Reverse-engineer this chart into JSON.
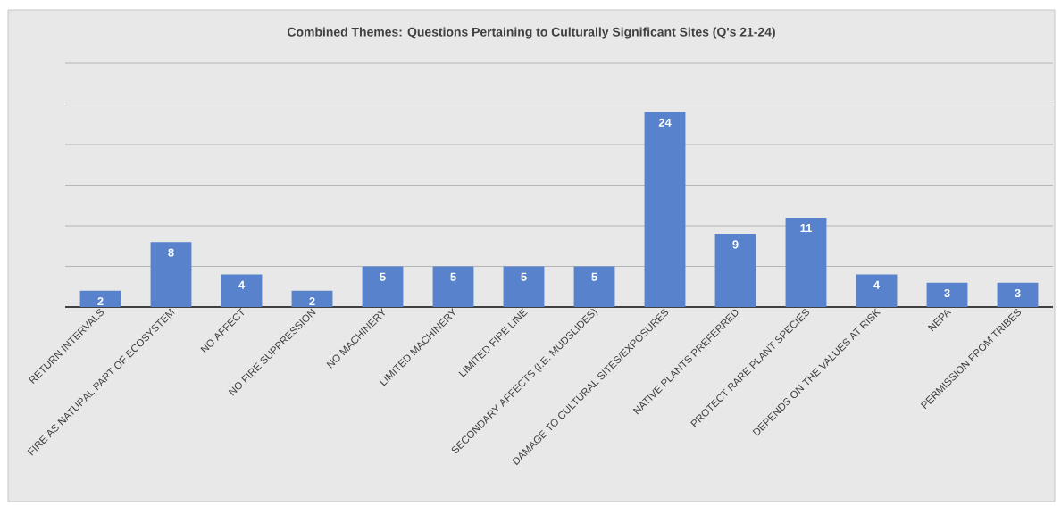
{
  "chart_data": {
    "type": "bar",
    "title": "Combined Themes:  Questions Pertaining to Culturally Significant Sites (Q's 21-24)",
    "categories": [
      "RETURN INTERVALS",
      "FIRE AS NATURAL PART OF ECOSYSTEM",
      "NO AFFECT",
      "NO FIRE SUPPRESSION",
      "NO MACHINERY",
      "LIMITED MACHINERY",
      "LIMITED FIRE LINE",
      "SECONDARY AFFECTS (I.E. MUDSLIDES)",
      "DAMAGE TO CULTURAL SITES/EXPOSURES",
      "NATIVE PLANTS PREFERRED",
      "PROTECT RARE PLANT SPECIES",
      "DEPENDS ON THE VALUES AT RISK",
      "NEPA",
      "PERMISSION FROM TRIBES"
    ],
    "values": [
      2,
      8,
      4,
      2,
      5,
      5,
      5,
      5,
      24,
      9,
      11,
      4,
      3,
      3
    ],
    "color": "#5882cc",
    "ylim": [
      0,
      30
    ],
    "yticks": [
      {
        "value": 0,
        "label": null
      },
      {
        "value": 5,
        "label": null
      },
      {
        "value": 10,
        "label": null
      },
      {
        "value": 15,
        "label": null
      },
      {
        "value": 20,
        "label": null
      },
      {
        "value": 25,
        "label": null
      },
      {
        "value": 30,
        "label": null
      }
    ],
    "grid": "y",
    "data_labels": true,
    "tick_labels": "x"
  }
}
